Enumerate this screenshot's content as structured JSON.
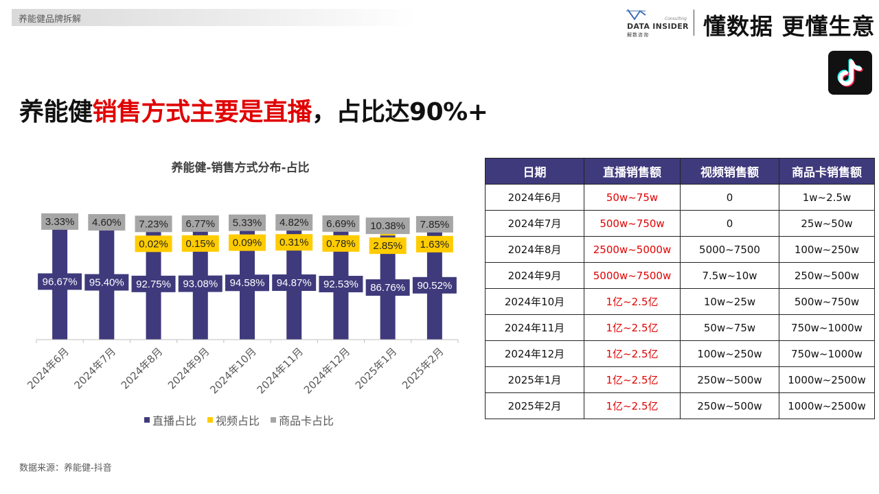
{
  "breadcrumb": "养能健品牌拆解",
  "logo": {
    "name": "DATA INSIDER",
    "sub": "解数咨询",
    "consulting": "Consulting"
  },
  "slogan": "懂数据 更懂生意",
  "headline": {
    "part1": "养能健",
    "part2": "销售方式主要是直播",
    "part3": "，占比达90%+"
  },
  "colors": {
    "live": "#3f3a7c",
    "video": "#ffcc00",
    "card": "#a6a6a6",
    "highlight": "#e00000",
    "table_header": "#3f3a7c"
  },
  "icons": {
    "platform": "tiktok-icon"
  },
  "chart_data": {
    "type": "bar",
    "stacked": true,
    "title": "养能健-销售方式分布-占比",
    "categories": [
      "2024年6月",
      "2024年7月",
      "2024年8月",
      "2024年9月",
      "2024年10月",
      "2024年11月",
      "2024年12月",
      "2025年1月",
      "2025年2月"
    ],
    "series": [
      {
        "name": "直播占比",
        "color": "#3f3a7c",
        "values": [
          96.67,
          95.4,
          92.75,
          93.08,
          94.58,
          94.87,
          92.53,
          86.76,
          90.52
        ],
        "labels": [
          "96.67%",
          "95.40%",
          "92.75%",
          "93.08%",
          "94.58%",
          "94.87%",
          "92.53%",
          "86.76%",
          "90.52%"
        ]
      },
      {
        "name": "视频占比",
        "color": "#ffcc00",
        "values": [
          0,
          0,
          0.02,
          0.15,
          0.09,
          0.31,
          0.78,
          2.85,
          1.63
        ],
        "labels": [
          "",
          "",
          "0.02%",
          "0.15%",
          "0.09%",
          "0.31%",
          "0.78%",
          "2.85%",
          "1.63%"
        ]
      },
      {
        "name": "商品卡占比",
        "color": "#a6a6a6",
        "values": [
          3.33,
          4.6,
          7.23,
          6.77,
          5.33,
          4.82,
          6.69,
          10.38,
          7.85
        ],
        "labels": [
          "3.33%",
          "4.60%",
          "7.23%",
          "6.77%",
          "5.33%",
          "4.82%",
          "6.69%",
          "10.38%",
          "7.85%"
        ]
      }
    ],
    "ylim": [
      0,
      100
    ],
    "grid": false,
    "legend": "bottom"
  },
  "table": {
    "headers": [
      "日期",
      "直播销售额",
      "视频销售额",
      "商品卡销售额"
    ],
    "rows": [
      [
        "2024年6月",
        "50w~75w",
        "0",
        "1w~2.5w"
      ],
      [
        "2024年7月",
        "500w~750w",
        "0",
        "25w~50w"
      ],
      [
        "2024年8月",
        "2500w~5000w",
        "5000~7500",
        "100w~250w"
      ],
      [
        "2024年9月",
        "5000w~7500w",
        "7.5w~10w",
        "250w~500w"
      ],
      [
        "2024年10月",
        "1亿~2.5亿",
        "10w~25w",
        "500w~750w"
      ],
      [
        "2024年11月",
        "1亿~2.5亿",
        "50w~75w",
        "750w~1000w"
      ],
      [
        "2024年12月",
        "1亿~2.5亿",
        "100w~250w",
        "750w~1000w"
      ],
      [
        "2025年1月",
        "1亿~2.5亿",
        "250w~500w",
        "1000w~2500w"
      ],
      [
        "2025年2月",
        "1亿~2.5亿",
        "250w~500w",
        "1000w~2500w"
      ]
    ]
  },
  "source": "数据来源：养能健-抖音"
}
